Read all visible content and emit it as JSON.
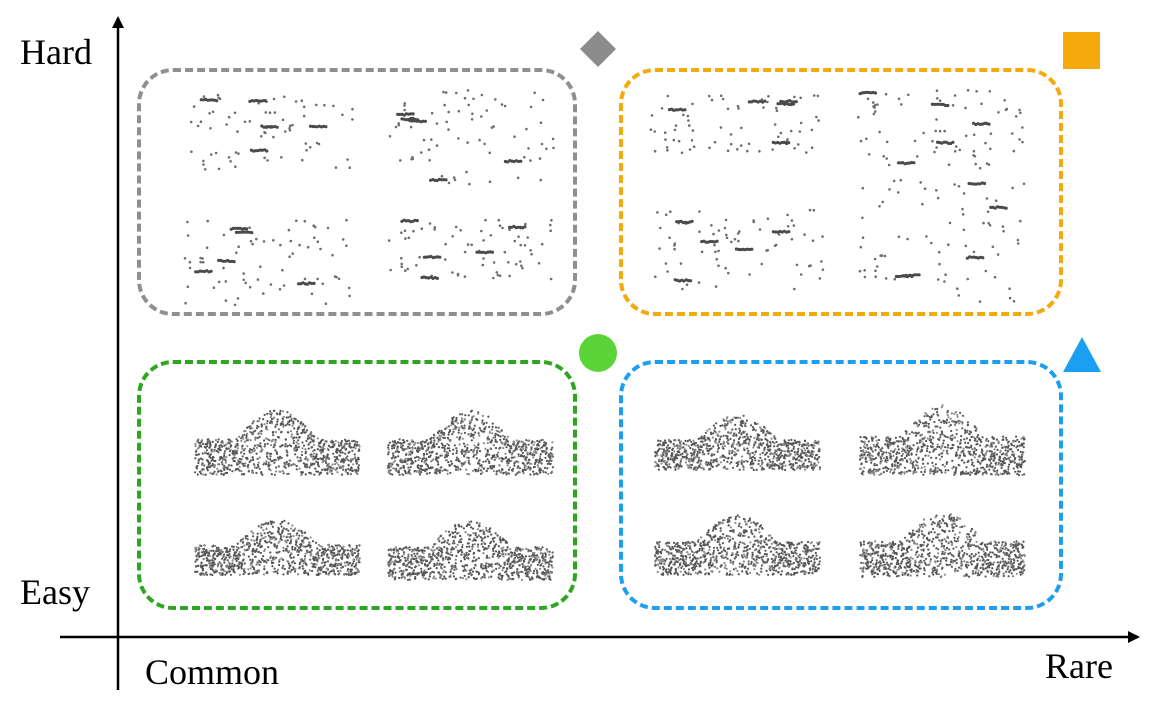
{
  "axes": {
    "y_top_label": "Hard",
    "y_bottom_label": "Easy",
    "x_left_label": "Common",
    "x_right_label": "Rare"
  },
  "quadrants": [
    {
      "id": "hard-common",
      "color": "#8f8f8f",
      "marker": "diamond",
      "marker_color": "#8c8c8c",
      "density": "sparse"
    },
    {
      "id": "hard-rare",
      "color": "#f5a90c",
      "marker": "square",
      "marker_color": "#f5a90c",
      "density": "sparse"
    },
    {
      "id": "easy-common",
      "color": "#2ea61f",
      "marker": "circle",
      "marker_color": "#5bd43a",
      "density": "dense"
    },
    {
      "id": "easy-rare",
      "color": "#1c9ff0",
      "marker": "triangle",
      "marker_color": "#1c9ff0",
      "density": "dense"
    }
  ],
  "icons": [
    "diamond-icon",
    "square-icon",
    "circle-icon",
    "triangle-icon"
  ]
}
